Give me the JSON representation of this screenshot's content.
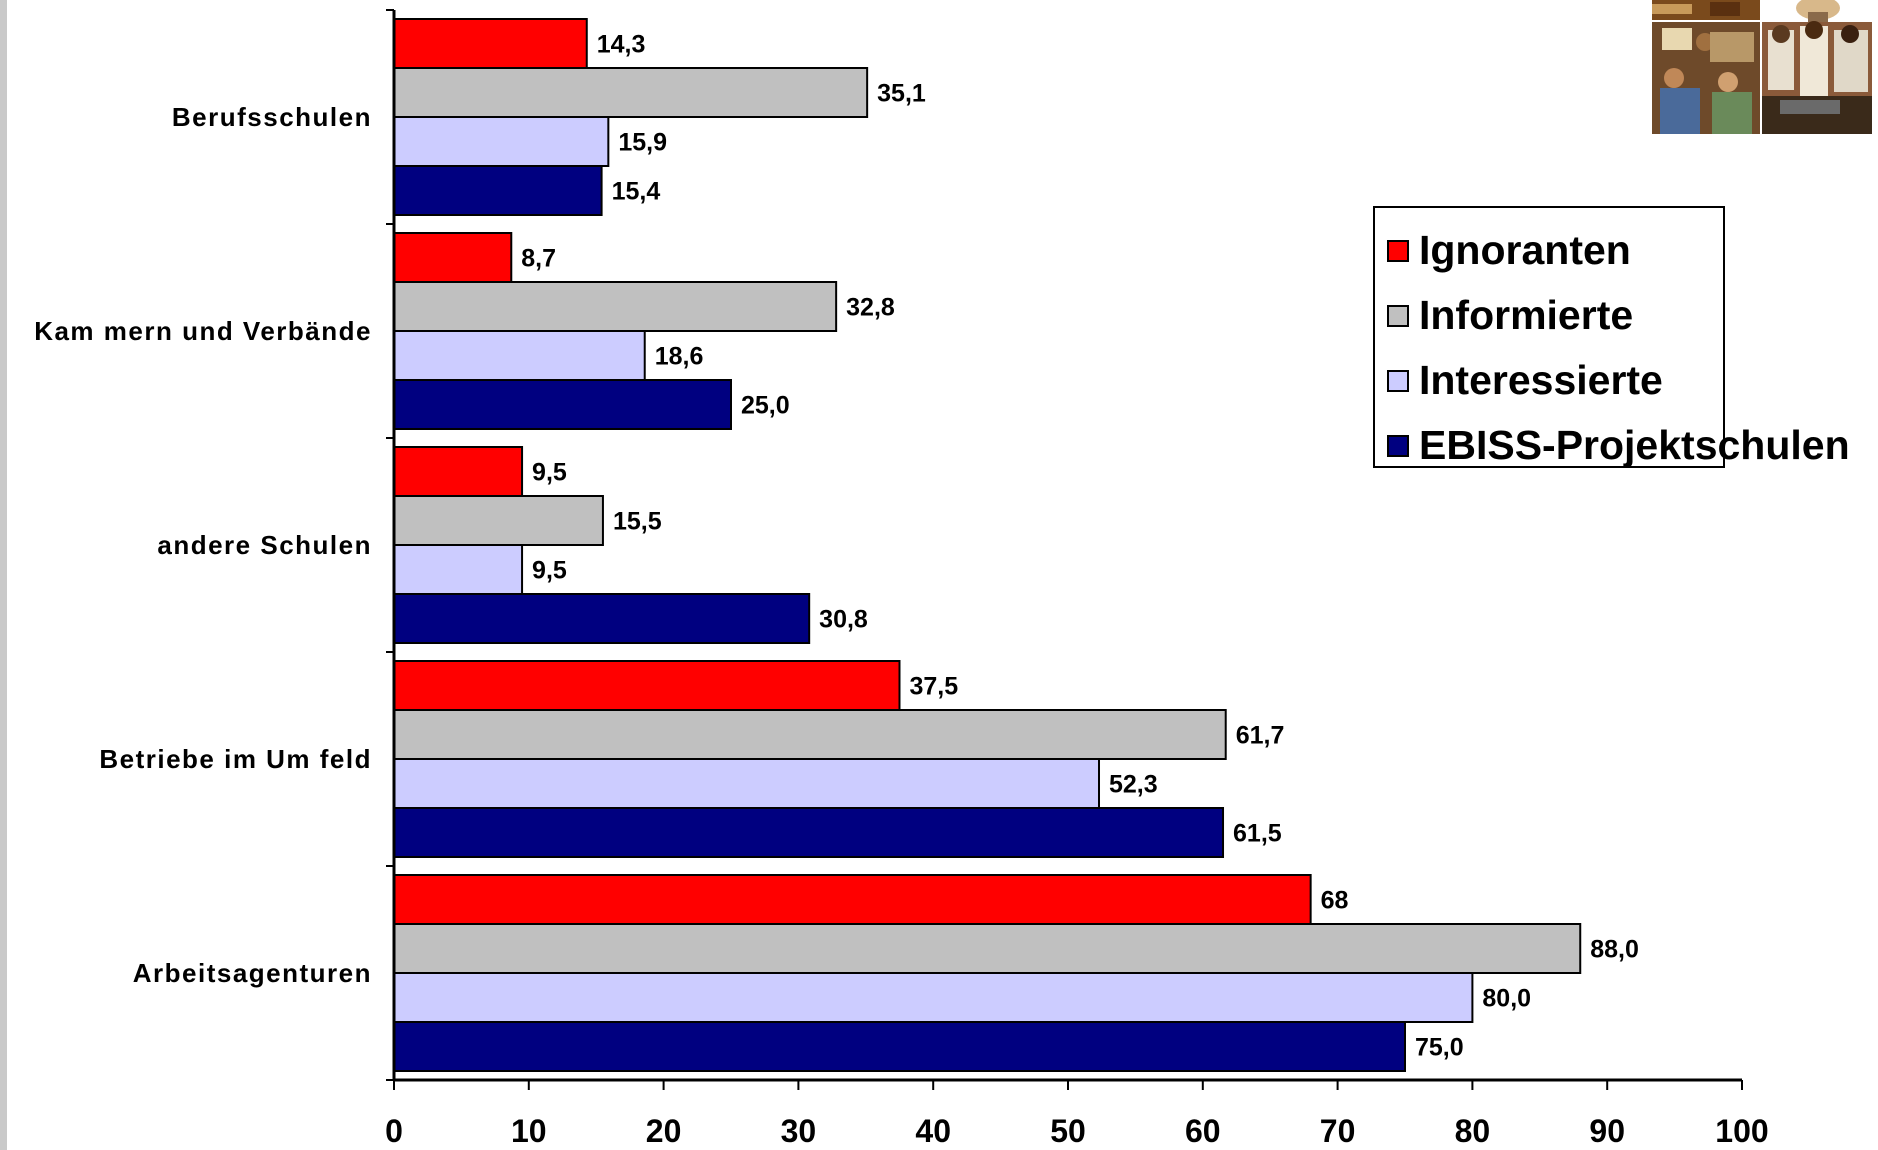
{
  "chart_data": {
    "type": "bar",
    "orientation": "horizontal",
    "categories": [
      "Berufsschulen",
      "Kam mern und Verbände",
      "andere Schulen",
      "Betriebe im Um feld",
      "Arbeitsagenturen"
    ],
    "series": [
      {
        "name": "Ignoranten",
        "color": "#ff0000",
        "values": [
          14.3,
          8.7,
          9.5,
          37.5,
          68
        ],
        "labels": [
          "14,3",
          "8,7",
          "9,5",
          "37,5",
          "68"
        ]
      },
      {
        "name": "Informierte",
        "color": "#c0c0c0",
        "values": [
          35.1,
          32.8,
          15.5,
          61.7,
          88.0
        ],
        "labels": [
          "35,1",
          "32,8",
          "15,5",
          "61,7",
          "88,0"
        ]
      },
      {
        "name": "Interessierte",
        "color": "#ccccff",
        "values": [
          15.9,
          18.6,
          9.5,
          52.3,
          80.0
        ],
        "labels": [
          "15,9",
          "18,6",
          "9,5",
          "52,3",
          "80,0"
        ]
      },
      {
        "name": "EBISS-Projektschulen",
        "color": "#000080",
        "values": [
          15.4,
          25.0,
          30.8,
          61.5,
          75.0
        ],
        "labels": [
          "15,4",
          "25,0",
          "30,8",
          "61,5",
          "75,0"
        ]
      }
    ],
    "xlim": [
      0,
      100
    ],
    "xticks": [
      "0",
      "10",
      "20",
      "30",
      "40",
      "50",
      "60",
      "70",
      "80",
      "90",
      "100"
    ],
    "title": "",
    "xlabel": "",
    "ylabel": "",
    "grid": false,
    "legend_position": "right"
  },
  "legend": {
    "items": [
      {
        "label": "Ignoranten",
        "color": "#ff0000"
      },
      {
        "label": "Informierte",
        "color": "#c0c0c0"
      },
      {
        "label": "Interessierte",
        "color": "#ccccff"
      },
      {
        "label": "EBISS-Projektschulen",
        "color": "#000080"
      }
    ]
  },
  "photo": {
    "icon": "workshop-photo-icon"
  }
}
